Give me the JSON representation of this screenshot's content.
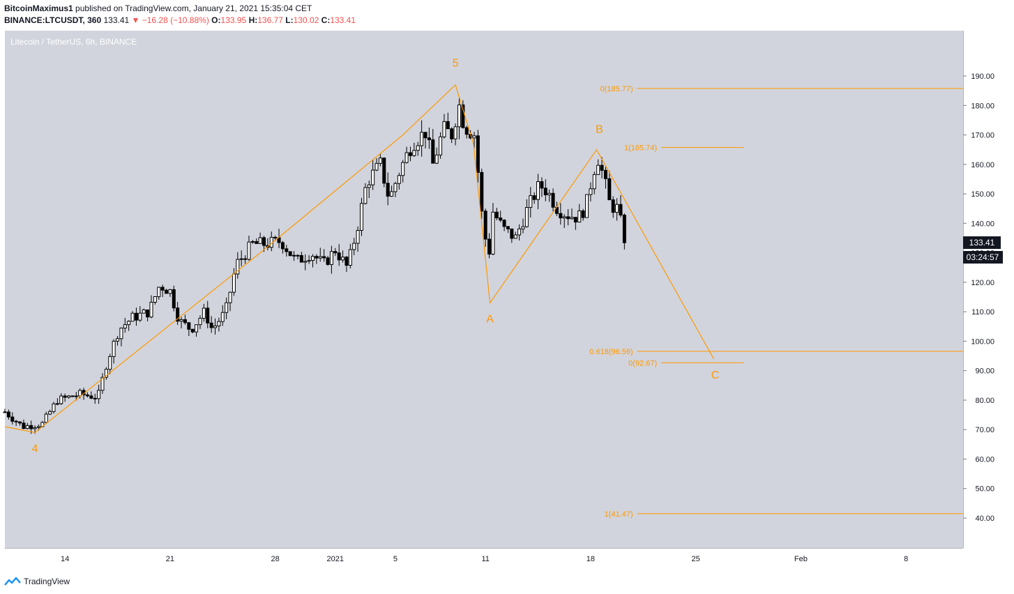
{
  "header": {
    "author": "BitcoinMaximus1",
    "published": "published on TradingView.com, January 21, 2021 15:35:04 CET",
    "symbol": "BINANCE:LTCUSDT, 360",
    "last": "133.41",
    "change": "−16.28 (−10.88%)",
    "open_label": "O:",
    "open": "133.95",
    "high_label": "H:",
    "high": "136.77",
    "low_label": "L:",
    "low": "130.02",
    "close_label": "C:",
    "close": "133.41"
  },
  "chart_title": "Litecoin / TetherUS, 6h, BINANCE",
  "price_axis": {
    "currency": "USDT",
    "last_price": "133.41",
    "countdown": "03:24:57"
  },
  "footer": {
    "brand": "TradingView"
  },
  "colors": {
    "background": "#d1d4dc",
    "annotation": "#ff9800",
    "candle": "#000000",
    "last_tag": "#131722"
  },
  "chart_data": {
    "type": "candlestick",
    "title": "Litecoin / TetherUS, 6h, BINANCE",
    "ylim": [
      30,
      200
    ],
    "yticks": [
      40,
      50,
      60,
      70,
      80,
      90,
      100,
      110,
      120,
      130,
      140,
      150,
      160,
      170,
      180,
      190
    ],
    "ytick_labels": [
      "40.00",
      "50.00",
      "60.00",
      "70.00",
      "80.00",
      "90.00",
      "100.00",
      "110.00",
      "120.00",
      "130.00",
      "140.00",
      "150.00",
      "160.00",
      "170.00",
      "180.00",
      "190.00"
    ],
    "xticks": [
      {
        "label": "14",
        "day": 14
      },
      {
        "label": "21",
        "day": 21
      },
      {
        "label": "28",
        "day": 28
      },
      {
        "label": "2021",
        "day": 32
      },
      {
        "label": "5",
        "day": 36
      },
      {
        "label": "11",
        "day": 42
      },
      {
        "label": "18",
        "day": 49
      },
      {
        "label": "25",
        "day": 56
      },
      {
        "label": "Feb",
        "day": 63
      },
      {
        "label": "8",
        "day": 70
      }
    ],
    "xlim_days": [
      10,
      73.8
    ],
    "waves": {
      "points": [
        {
          "label": "",
          "day": 10.0,
          "price": 71
        },
        {
          "label": "4",
          "day": 12.0,
          "price": 69
        },
        {
          "label": "",
          "day": 27.0,
          "price": 130
        },
        {
          "label": "",
          "day": 36.5,
          "price": 170
        },
        {
          "label": "5",
          "day": 40.0,
          "price": 187
        },
        {
          "label": "",
          "day": 41.2,
          "price": 167
        },
        {
          "label": "A",
          "day": 42.3,
          "price": 113
        },
        {
          "label": "B",
          "day": 49.4,
          "price": 165
        },
        {
          "label": "C",
          "day": 57.2,
          "price": 94
        }
      ]
    },
    "fibonacci": [
      {
        "label": "0(185.77)",
        "price": 185.77,
        "from_day": 52.1,
        "to_day": 73.8
      },
      {
        "label": "1(165.74)",
        "price": 165.74,
        "from_day": 53.7,
        "to_day": 59.2
      },
      {
        "label": "0.618(96.59)",
        "price": 96.59,
        "from_day": 52.1,
        "to_day": 73.8
      },
      {
        "label": "0(92.67)",
        "price": 92.67,
        "from_day": 53.7,
        "to_day": 59.2
      },
      {
        "label": "1(41.47)",
        "price": 41.47,
        "from_day": 52.1,
        "to_day": 73.8
      }
    ],
    "candle_anchors": [
      {
        "day": 10.0,
        "price": 76
      },
      {
        "day": 11.2,
        "price": 71
      },
      {
        "day": 12.5,
        "price": 72
      },
      {
        "day": 13.5,
        "price": 80
      },
      {
        "day": 15.0,
        "price": 82
      },
      {
        "day": 16.2,
        "price": 81
      },
      {
        "day": 16.8,
        "price": 93
      },
      {
        "day": 17.6,
        "price": 104
      },
      {
        "day": 18.5,
        "price": 108
      },
      {
        "day": 19.6,
        "price": 110
      },
      {
        "day": 20.3,
        "price": 119
      },
      {
        "day": 21.0,
        "price": 117
      },
      {
        "day": 21.6,
        "price": 107
      },
      {
        "day": 22.4,
        "price": 104
      },
      {
        "day": 23.3,
        "price": 110
      },
      {
        "day": 23.8,
        "price": 104
      },
      {
        "day": 24.7,
        "price": 110
      },
      {
        "day": 25.4,
        "price": 126
      },
      {
        "day": 26.5,
        "price": 133
      },
      {
        "day": 27.4,
        "price": 133
      },
      {
        "day": 28.4,
        "price": 134
      },
      {
        "day": 29.4,
        "price": 127
      },
      {
        "day": 30.4,
        "price": 130
      },
      {
        "day": 31.2,
        "price": 126
      },
      {
        "day": 32.0,
        "price": 131
      },
      {
        "day": 32.8,
        "price": 125
      },
      {
        "day": 33.4,
        "price": 137
      },
      {
        "day": 34.1,
        "price": 154
      },
      {
        "day": 35.0,
        "price": 160
      },
      {
        "day": 35.6,
        "price": 148
      },
      {
        "day": 36.3,
        "price": 158
      },
      {
        "day": 37.1,
        "price": 167
      },
      {
        "day": 38.0,
        "price": 171
      },
      {
        "day": 38.5,
        "price": 160
      },
      {
        "day": 39.2,
        "price": 172
      },
      {
        "day": 39.8,
        "price": 170
      },
      {
        "day": 40.2,
        "price": 181
      },
      {
        "day": 40.6,
        "price": 173
      },
      {
        "day": 41.3,
        "price": 170
      },
      {
        "day": 41.7,
        "price": 145
      },
      {
        "day": 42.2,
        "price": 128
      },
      {
        "day": 42.5,
        "price": 144
      },
      {
        "day": 43.2,
        "price": 138
      },
      {
        "day": 44.0,
        "price": 135
      },
      {
        "day": 44.8,
        "price": 145
      },
      {
        "day": 45.6,
        "price": 153
      },
      {
        "day": 46.1,
        "price": 151
      },
      {
        "day": 46.8,
        "price": 145
      },
      {
        "day": 47.4,
        "price": 143
      },
      {
        "day": 48.2,
        "price": 142
      },
      {
        "day": 48.7,
        "price": 146
      },
      {
        "day": 49.2,
        "price": 158
      },
      {
        "day": 49.5,
        "price": 162
      },
      {
        "day": 49.9,
        "price": 155
      },
      {
        "day": 50.3,
        "price": 146
      },
      {
        "day": 50.8,
        "price": 145
      },
      {
        "day": 51.2,
        "price": 136
      },
      {
        "day": 51.4,
        "price": 133.41
      }
    ]
  }
}
